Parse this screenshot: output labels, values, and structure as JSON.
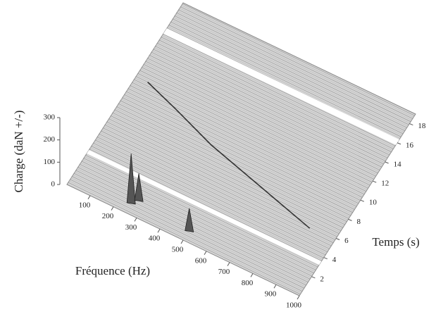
{
  "chart_data": {
    "type": "waterfall",
    "zlabel": "Charge (daN +/-)",
    "xlabel": "Fréquence (Hz)",
    "ylabel": "Temps (s)",
    "xlim": [
      0,
      1000
    ],
    "xticks": [
      100,
      200,
      300,
      400,
      500,
      600,
      700,
      800,
      900,
      1000
    ],
    "ylim": [
      0,
      19
    ],
    "yticks": [
      2,
      4,
      6,
      8,
      10,
      12,
      14,
      16,
      18
    ],
    "zlim": [
      0,
      300
    ],
    "zticks": [
      0,
      100,
      200,
      300
    ],
    "peaks": {
      "x": [
        250,
        270,
        500
      ],
      "y": [
        1,
        1.5,
        1
      ],
      "values": [
        220,
        120,
        100
      ]
    },
    "trace": {
      "x": [
        50,
        200,
        391,
        650,
        892
      ],
      "values": [
        11.3,
        10.2,
        8.7,
        7.2,
        5.8
      ]
    },
    "color": "#333333"
  }
}
